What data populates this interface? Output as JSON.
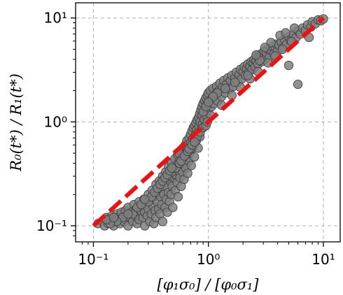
{
  "chart_data": {
    "type": "scatter",
    "title": "",
    "xlabel": "[φ₁σ₀] / [φ₀σ₁]",
    "ylabel": "R₀(t*) / R₁(t*)",
    "xscale": "log",
    "yscale": "log",
    "xlim": [
      0.07,
      14
    ],
    "ylim": [
      0.07,
      14
    ],
    "grid": true,
    "x_ticks": [
      {
        "value": 0.1,
        "label": "10⁻¹"
      },
      {
        "value": 1,
        "label": "10⁰"
      },
      {
        "value": 10,
        "label": "10¹"
      }
    ],
    "y_ticks": [
      {
        "value": 0.1,
        "label": "10⁻¹"
      },
      {
        "value": 1,
        "label": "10⁰"
      },
      {
        "value": 10,
        "label": "10¹"
      }
    ],
    "reference_line": {
      "x": [
        0.1,
        10
      ],
      "y": [
        0.1,
        10
      ],
      "style": "dashed",
      "color": "#ee1111"
    },
    "series": [
      {
        "marker_color": "#7f7f7f",
        "edge_color": "#404040",
        "points": [
          [
            0.11,
            0.105
          ],
          [
            0.12,
            0.11
          ],
          [
            0.125,
            0.1
          ],
          [
            0.13,
            0.12
          ],
          [
            0.135,
            0.105
          ],
          [
            0.14,
            0.115
          ],
          [
            0.145,
            0.125
          ],
          [
            0.15,
            0.1
          ],
          [
            0.155,
            0.11
          ],
          [
            0.16,
            0.13
          ],
          [
            0.165,
            0.12
          ],
          [
            0.17,
            0.105
          ],
          [
            0.175,
            0.135
          ],
          [
            0.18,
            0.115
          ],
          [
            0.185,
            0.11
          ],
          [
            0.19,
            0.14
          ],
          [
            0.195,
            0.125
          ],
          [
            0.2,
            0.1
          ],
          [
            0.2,
            0.15
          ],
          [
            0.21,
            0.12
          ],
          [
            0.215,
            0.135
          ],
          [
            0.22,
            0.11
          ],
          [
            0.225,
            0.16
          ],
          [
            0.23,
            0.125
          ],
          [
            0.235,
            0.145
          ],
          [
            0.24,
            0.105
          ],
          [
            0.245,
            0.13
          ],
          [
            0.25,
            0.17
          ],
          [
            0.25,
            0.115
          ],
          [
            0.26,
            0.14
          ],
          [
            0.265,
            0.155
          ],
          [
            0.27,
            0.12
          ],
          [
            0.275,
            0.18
          ],
          [
            0.28,
            0.1
          ],
          [
            0.28,
            0.135
          ],
          [
            0.29,
            0.16
          ],
          [
            0.295,
            0.125
          ],
          [
            0.3,
            0.2
          ],
          [
            0.3,
            0.145
          ],
          [
            0.31,
            0.11
          ],
          [
            0.315,
            0.175
          ],
          [
            0.32,
            0.13
          ],
          [
            0.325,
            0.22
          ],
          [
            0.33,
            0.155
          ],
          [
            0.335,
            0.105
          ],
          [
            0.34,
            0.19
          ],
          [
            0.345,
            0.14
          ],
          [
            0.35,
            0.25
          ],
          [
            0.35,
            0.12
          ],
          [
            0.36,
            0.17
          ],
          [
            0.365,
            0.21
          ],
          [
            0.37,
            0.145
          ],
          [
            0.375,
            0.27
          ],
          [
            0.38,
            0.13
          ],
          [
            0.385,
            0.19
          ],
          [
            0.39,
            0.23
          ],
          [
            0.395,
            0.16
          ],
          [
            0.4,
            0.3
          ],
          [
            0.4,
            0.11
          ],
          [
            0.41,
            0.2
          ],
          [
            0.415,
            0.26
          ],
          [
            0.42,
            0.15
          ],
          [
            0.425,
            0.33
          ],
          [
            0.43,
            0.18
          ],
          [
            0.435,
            0.24
          ],
          [
            0.44,
            0.135
          ],
          [
            0.445,
            0.29
          ],
          [
            0.45,
            0.37
          ],
          [
            0.45,
            0.21
          ],
          [
            0.46,
            0.17
          ],
          [
            0.465,
            0.27
          ],
          [
            0.47,
            0.32
          ],
          [
            0.475,
            0.2
          ],
          [
            0.48,
            0.4
          ],
          [
            0.485,
            0.24
          ],
          [
            0.49,
            0.15
          ],
          [
            0.5,
            0.35
          ],
          [
            0.5,
            0.29
          ],
          [
            0.51,
            0.44
          ],
          [
            0.515,
            0.22
          ],
          [
            0.52,
            0.31
          ],
          [
            0.53,
            0.38
          ],
          [
            0.535,
            0.26
          ],
          [
            0.54,
            0.48
          ],
          [
            0.545,
            0.19
          ],
          [
            0.55,
            0.34
          ],
          [
            0.56,
            0.42
          ],
          [
            0.565,
            0.29
          ],
          [
            0.57,
            0.52
          ],
          [
            0.575,
            0.37
          ],
          [
            0.58,
            0.24
          ],
          [
            0.59,
            0.46
          ],
          [
            0.595,
            0.33
          ],
          [
            0.6,
            0.56
          ],
          [
            0.61,
            0.4
          ],
          [
            0.615,
            0.28
          ],
          [
            0.62,
            0.5
          ],
          [
            0.63,
            0.6
          ],
          [
            0.635,
            0.36
          ],
          [
            0.64,
            0.45
          ],
          [
            0.65,
            0.66
          ],
          [
            0.655,
            0.54
          ],
          [
            0.66,
            0.32
          ],
          [
            0.67,
            0.6
          ],
          [
            0.675,
            0.42
          ],
          [
            0.68,
            0.7
          ],
          [
            0.69,
            0.5
          ],
          [
            0.7,
            0.76
          ],
          [
            0.705,
            0.64
          ],
          [
            0.71,
            0.38
          ],
          [
            0.72,
            0.82
          ],
          [
            0.725,
            0.56
          ],
          [
            0.73,
            0.68
          ],
          [
            0.74,
            0.88
          ],
          [
            0.75,
            0.6
          ],
          [
            0.755,
            0.46
          ],
          [
            0.76,
            0.92
          ],
          [
            0.77,
            0.74
          ],
          [
            0.78,
            0.98
          ],
          [
            0.785,
            0.66
          ],
          [
            0.79,
            0.84
          ],
          [
            0.8,
            1.05
          ],
          [
            0.81,
            0.78
          ],
          [
            0.815,
            0.56
          ],
          [
            0.82,
            1.1
          ],
          [
            0.83,
            0.9
          ],
          [
            0.84,
            1.2
          ],
          [
            0.845,
            0.72
          ],
          [
            0.85,
            1.0
          ],
          [
            0.86,
            1.3
          ],
          [
            0.87,
            0.86
          ],
          [
            0.88,
            1.4
          ],
          [
            0.885,
            1.15
          ],
          [
            0.89,
            0.95
          ],
          [
            0.9,
            1.5
          ],
          [
            0.91,
            1.25
          ],
          [
            0.92,
            1.05
          ],
          [
            0.93,
            1.6
          ],
          [
            0.94,
            1.35
          ],
          [
            0.95,
            1.7
          ],
          [
            0.96,
            1.15
          ],
          [
            0.97,
            1.45
          ],
          [
            0.98,
            1.8
          ],
          [
            0.99,
            1.3
          ],
          [
            1.0,
            1.9
          ],
          [
            1.02,
            1.55
          ],
          [
            1.04,
            2.0
          ],
          [
            1.06,
            1.4
          ],
          [
            1.08,
            1.7
          ],
          [
            1.1,
            2.1
          ],
          [
            1.12,
            1.5
          ],
          [
            1.15,
            1.85
          ],
          [
            1.18,
            2.2
          ],
          [
            1.2,
            1.6
          ],
          [
            1.23,
            2.0
          ],
          [
            1.26,
            2.35
          ],
          [
            1.3,
            1.75
          ],
          [
            1.33,
            2.15
          ],
          [
            1.36,
            2.5
          ],
          [
            1.4,
            1.9
          ],
          [
            1.44,
            2.3
          ],
          [
            1.48,
            2.65
          ],
          [
            1.52,
            2.05
          ],
          [
            1.56,
            2.5
          ],
          [
            1.6,
            2.8
          ],
          [
            1.65,
            2.2
          ],
          [
            1.7,
            2.65
          ],
          [
            1.75,
            3.0
          ],
          [
            1.8,
            2.4
          ],
          [
            1.85,
            2.85
          ],
          [
            1.9,
            3.2
          ],
          [
            1.95,
            2.6
          ],
          [
            2.0,
            3.05
          ],
          [
            2.05,
            3.4
          ],
          [
            2.1,
            2.8
          ],
          [
            2.15,
            3.25
          ],
          [
            2.2,
            3.6
          ],
          [
            2.25,
            3.0
          ],
          [
            2.3,
            3.45
          ],
          [
            2.35,
            3.8
          ],
          [
            2.4,
            3.2
          ],
          [
            2.45,
            3.7
          ],
          [
            2.5,
            4.0
          ],
          [
            2.55,
            3.4
          ],
          [
            2.6,
            3.9
          ],
          [
            2.65,
            4.3
          ],
          [
            2.7,
            3.6
          ],
          [
            2.8,
            4.15
          ],
          [
            2.85,
            4.5
          ],
          [
            2.9,
            3.8
          ],
          [
            3.0,
            4.4
          ],
          [
            3.05,
            4.8
          ],
          [
            3.1,
            4.0
          ],
          [
            3.2,
            4.6
          ],
          [
            3.3,
            5.0
          ],
          [
            3.4,
            4.2
          ],
          [
            3.5,
            4.9
          ],
          [
            3.6,
            5.3
          ],
          [
            3.7,
            4.5
          ],
          [
            3.8,
            5.2
          ],
          [
            3.9,
            5.6
          ],
          [
            4.0,
            4.8
          ],
          [
            4.1,
            5.5
          ],
          [
            4.3,
            5.9
          ],
          [
            4.5,
            5.2
          ],
          [
            4.6,
            6.2
          ],
          [
            4.8,
            5.6
          ],
          [
            5.0,
            6.6
          ],
          [
            5.0,
            3.5
          ],
          [
            5.2,
            6.0
          ],
          [
            5.5,
            7.0
          ],
          [
            5.8,
            6.5
          ],
          [
            6.0,
            7.5
          ],
          [
            6.0,
            2.3
          ],
          [
            6.3,
            7.0
          ],
          [
            6.6,
            8.0
          ],
          [
            7.0,
            7.6
          ],
          [
            7.3,
            8.6
          ],
          [
            7.5,
            6.5
          ],
          [
            7.8,
            8.2
          ],
          [
            8.0,
            9.2
          ],
          [
            8.5,
            8.8
          ],
          [
            9.0,
            9.6
          ],
          [
            9.5,
            9.4
          ],
          [
            10.0,
            9.8
          ],
          [
            1.05,
            1.15
          ],
          [
            1.3,
            1.45
          ],
          [
            1.6,
            1.8
          ],
          [
            1.9,
            2.15
          ],
          [
            2.3,
            2.6
          ],
          [
            2.7,
            3.05
          ],
          [
            3.3,
            3.7
          ],
          [
            3.8,
            4.3
          ],
          [
            4.4,
            5.0
          ],
          [
            5.3,
            5.9
          ],
          [
            0.55,
            0.5
          ],
          [
            0.6,
            0.45
          ],
          [
            0.65,
            0.5
          ],
          [
            0.7,
            0.55
          ],
          [
            0.75,
            0.7
          ],
          [
            0.8,
            0.72
          ],
          [
            0.85,
            0.8
          ],
          [
            0.9,
            0.88
          ],
          [
            0.95,
            0.92
          ],
          [
            0.98,
            1.0
          ],
          [
            0.45,
            0.3
          ],
          [
            0.48,
            0.33
          ],
          [
            0.52,
            0.36
          ],
          [
            0.56,
            0.4
          ],
          [
            0.58,
            0.42
          ],
          [
            0.62,
            0.47
          ],
          [
            0.66,
            0.52
          ],
          [
            0.68,
            0.55
          ],
          [
            0.72,
            0.6
          ],
          [
            0.76,
            0.64
          ],
          [
            0.3,
            0.17
          ],
          [
            0.32,
            0.19
          ],
          [
            0.34,
            0.21
          ],
          [
            0.36,
            0.23
          ],
          [
            0.38,
            0.25
          ],
          [
            0.4,
            0.27
          ],
          [
            0.42,
            0.29
          ],
          [
            0.44,
            0.31
          ],
          [
            0.46,
            0.34
          ],
          [
            0.48,
            0.36
          ],
          [
            0.22,
            0.13
          ],
          [
            0.24,
            0.15
          ],
          [
            0.26,
            0.16
          ],
          [
            0.28,
            0.18
          ],
          [
            0.18,
            0.12
          ],
          [
            0.2,
            0.13
          ],
          [
            0.16,
            0.11
          ],
          [
            0.14,
            0.105
          ],
          [
            0.13,
            0.115
          ],
          [
            0.15,
            0.12
          ],
          [
            2.8,
            3.9
          ],
          [
            3.5,
            5.8
          ],
          [
            4.2,
            6.8
          ],
          [
            2.2,
            2.8
          ],
          [
            1.7,
            2.4
          ],
          [
            1.4,
            2.1
          ],
          [
            1.2,
            1.9
          ],
          [
            1.1,
            1.75
          ],
          [
            4.7,
            7.2
          ],
          [
            5.6,
            8.0
          ],
          [
            3.1,
            5.2
          ],
          [
            2.6,
            4.4
          ],
          [
            0.9,
            1.25
          ],
          [
            0.95,
            1.4
          ],
          [
            1.0,
            1.55
          ]
        ]
      }
    ]
  }
}
